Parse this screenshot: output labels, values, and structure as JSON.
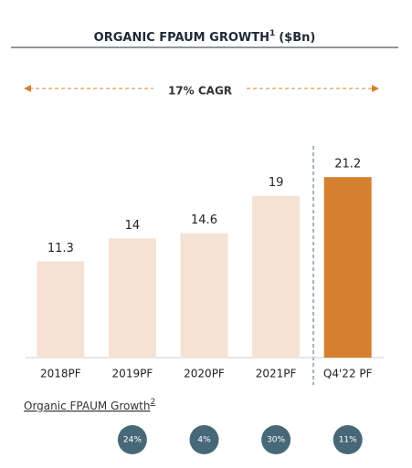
{
  "chart_data": {
    "type": "bar",
    "title": "ORGANIC FPAUM GROWTH",
    "title_note": "1",
    "title_unit": "($Bn)",
    "annotation": "17% CAGR",
    "categories": [
      "2018PF",
      "2019PF",
      "2020PF",
      "2021PF",
      "Q4'22 PF"
    ],
    "values": [
      11.3,
      14,
      14.6,
      19,
      21.2
    ],
    "colors": [
      "#f6e2d4",
      "#f6e2d4",
      "#f6e2d4",
      "#f6e2d4",
      "#d4802f"
    ],
    "ylim": [
      0,
      24
    ],
    "growth": {
      "label": "Organic FPAUM Growth",
      "note": "2",
      "values": [
        24,
        4,
        30,
        11
      ],
      "value_labels": [
        "24%",
        "4%",
        "30%",
        "11%"
      ],
      "color": "#476878"
    }
  }
}
